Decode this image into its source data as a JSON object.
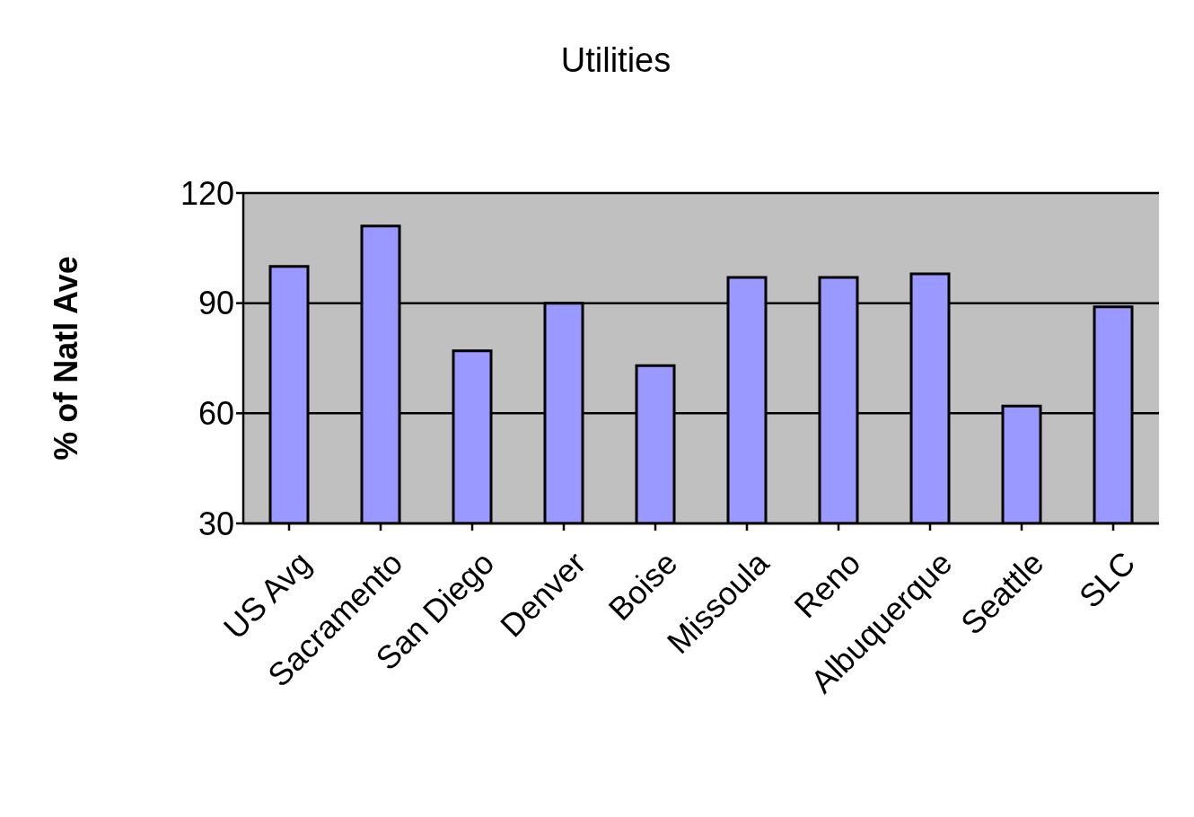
{
  "chart_data": {
    "type": "bar",
    "title": "Utilities",
    "ylabel": "% of Natl Ave",
    "categories": [
      "US Avg",
      "Sacramento",
      "San Diego",
      "Denver",
      "Boise",
      "Missoula",
      "Reno",
      "Albuquerque",
      "Seattle",
      "SLC"
    ],
    "values": [
      100,
      111,
      77,
      90,
      73,
      97,
      97,
      98,
      62,
      89
    ],
    "color": "#9999ff",
    "ylim": [
      30,
      120
    ],
    "yticks": [
      30,
      60,
      90,
      120
    ],
    "grid": "y"
  }
}
